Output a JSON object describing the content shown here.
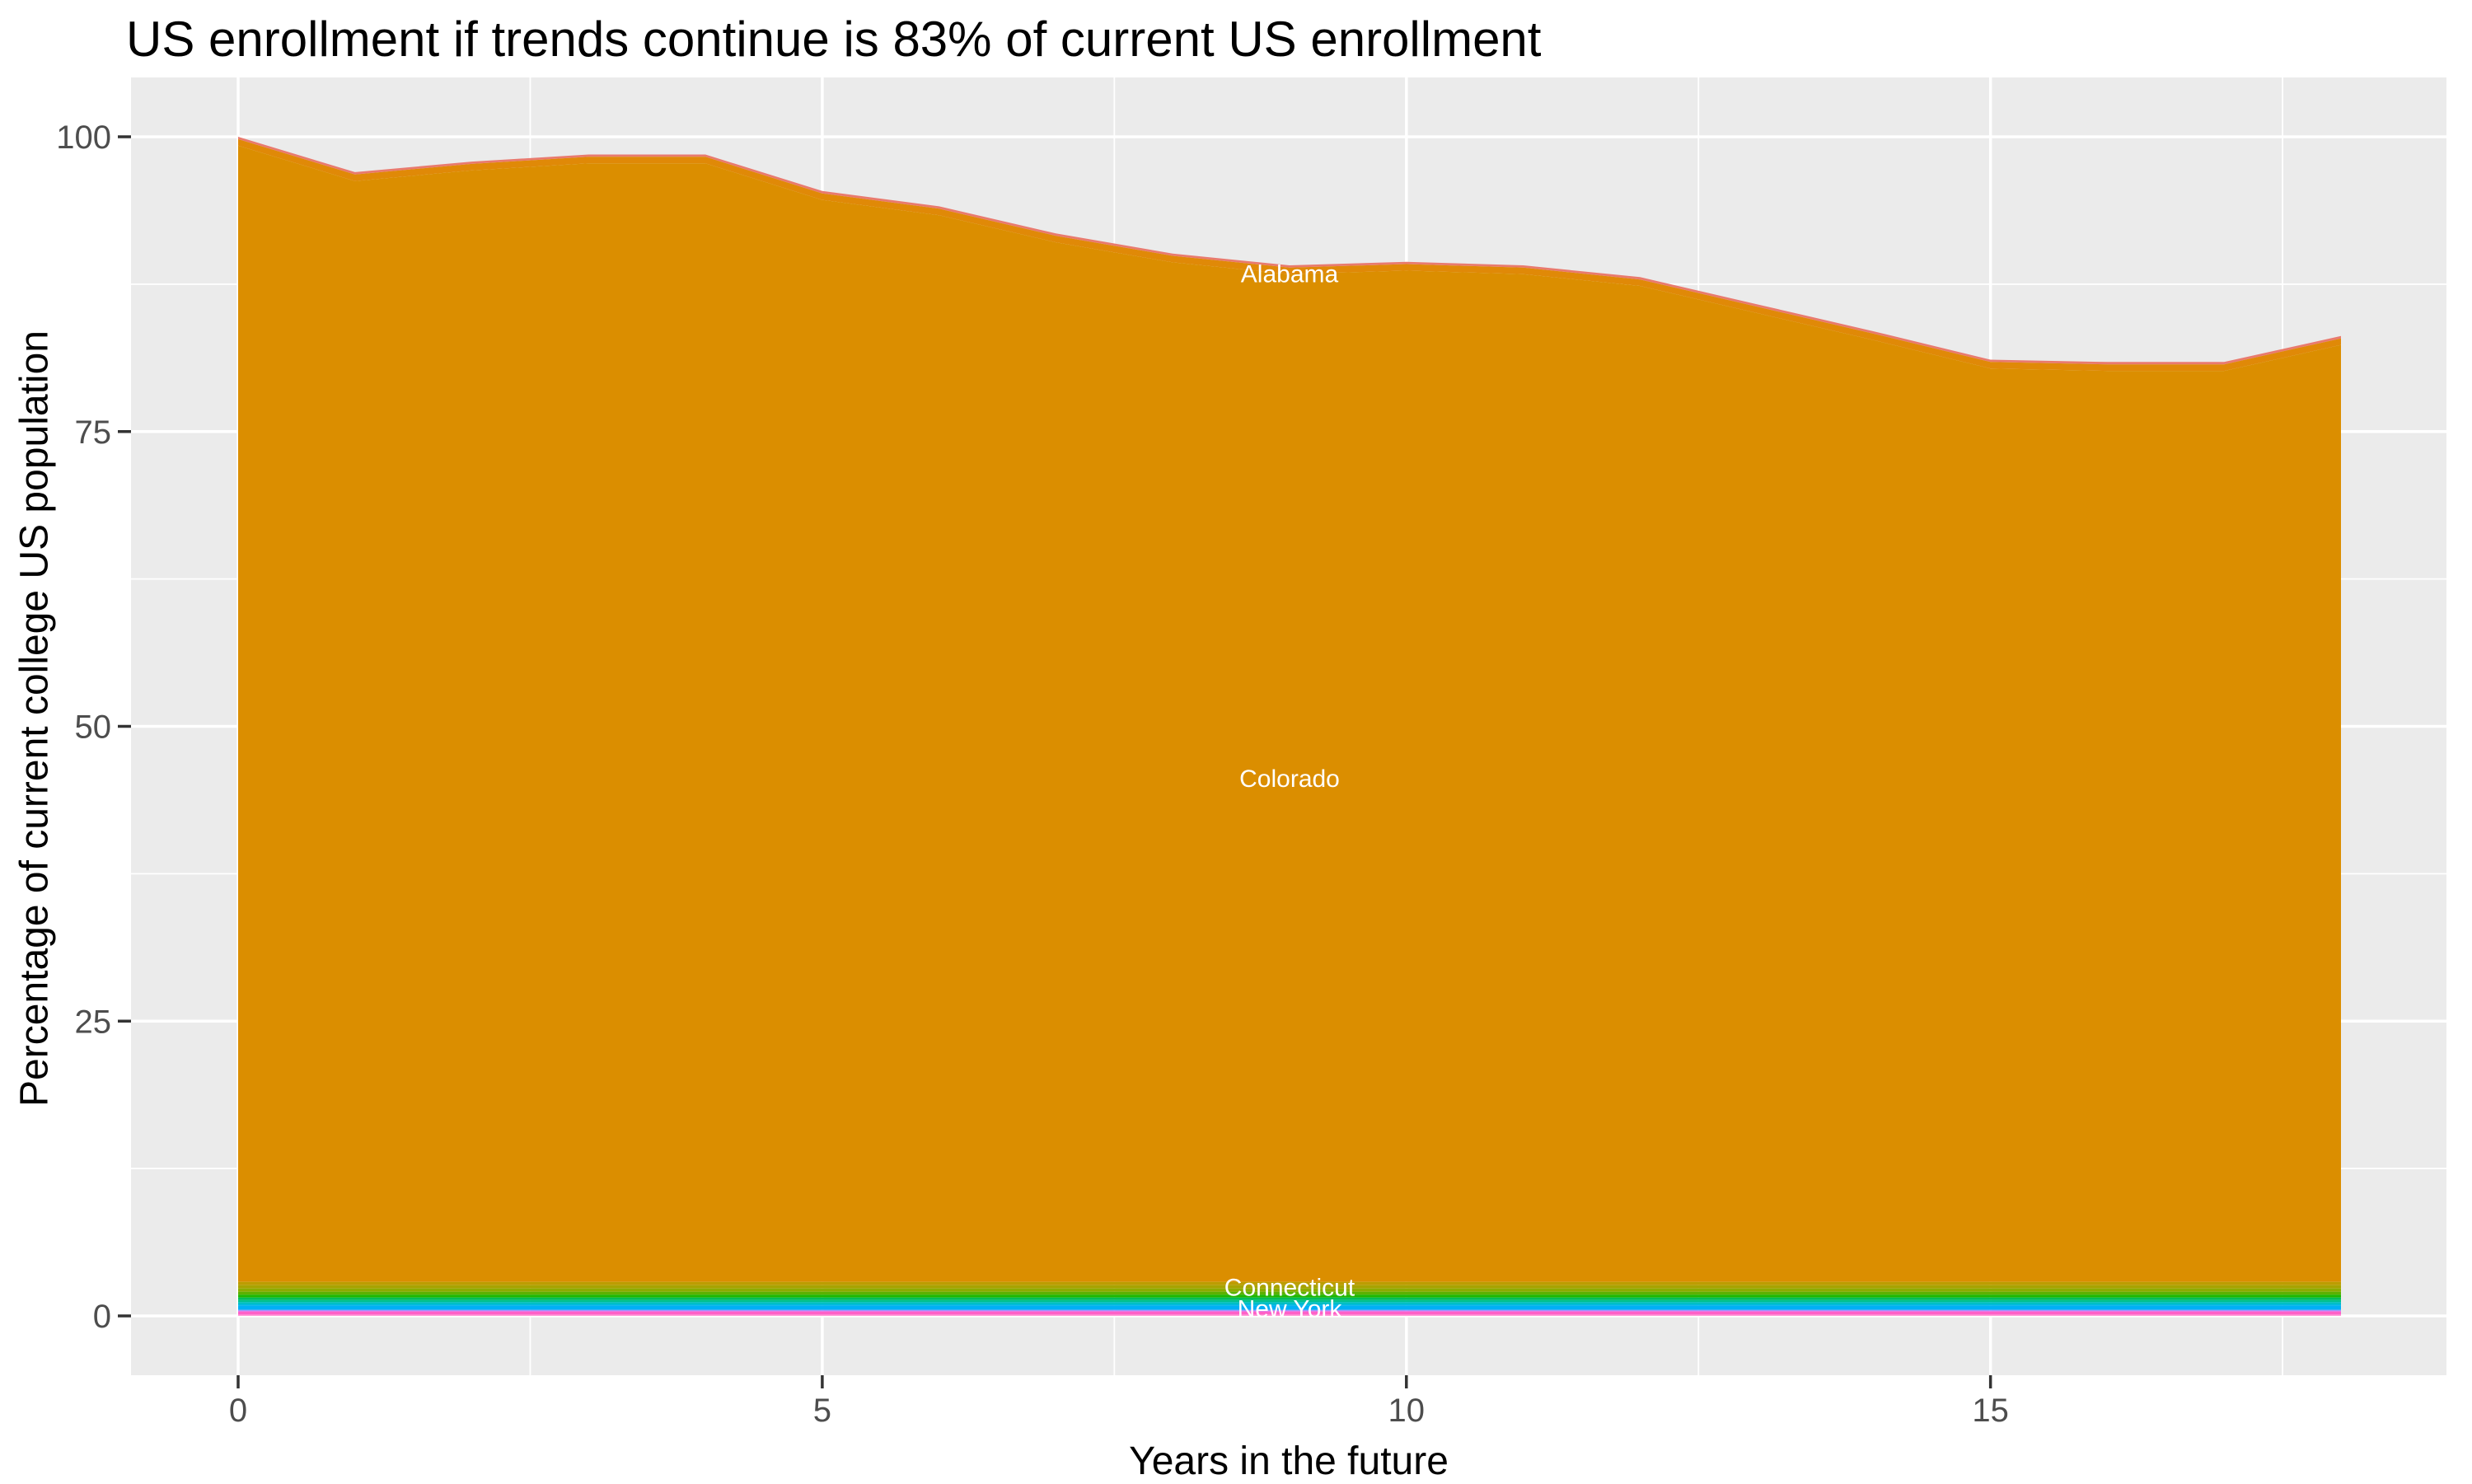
{
  "page": {
    "background": "#FFFFFF"
  },
  "chart_data": {
    "type": "area",
    "stacked": true,
    "title": "US enrollment if trends continue is 83% of current US enrollment",
    "xlabel": "Years in the future",
    "ylabel": "Percentage of current college US population",
    "x": [
      0,
      1,
      2,
      3,
      4,
      5,
      6,
      7,
      8,
      9,
      10,
      11,
      12,
      13,
      14,
      15,
      16,
      17,
      18
    ],
    "xlim": [
      -0.9,
      18.9
    ],
    "ylim": [
      -5,
      105
    ],
    "x_ticks": [
      "0",
      "5",
      "10",
      "15"
    ],
    "x_tick_values": [
      0,
      5,
      10,
      15
    ],
    "y_ticks": [
      "0",
      "25",
      "50",
      "75",
      "100"
    ],
    "y_tick_values": [
      0,
      25,
      50,
      75,
      100
    ],
    "x_minor_tick_values": [
      2.5,
      7.5,
      12.5,
      17.5
    ],
    "y_minor_tick_values": [
      12.5,
      37.5,
      62.5,
      87.5
    ],
    "grid": true,
    "legend": "none",
    "total_top_line": [
      100,
      97.0,
      97.9,
      98.5,
      98.5,
      95.4,
      94.1,
      91.8,
      90.1,
      89.1,
      89.4,
      89.1,
      88.1,
      85.8,
      83.5,
      81.1,
      80.9,
      80.9,
      83.1
    ],
    "series": [
      {
        "name": "Alabama",
        "color": "#E97A6E",
        "value": 0.2
      },
      {
        "name": "",
        "color": "#E08907",
        "value": 0.55
      },
      {
        "name": "Colorado",
        "color": "#DB8E00",
        "remainder": true
      },
      {
        "name": "Connecticut",
        "color": "#BC9D00",
        "value": 0.28
      },
      {
        "name": "",
        "color": "#A7A300",
        "value": 0.28
      },
      {
        "name": "",
        "color": "#8CAB00",
        "value": 0.28
      },
      {
        "name": "",
        "color": "#5BB100",
        "value": 0.24
      },
      {
        "name": "",
        "color": "#1DB800",
        "value": 0.24
      },
      {
        "name": "",
        "color": "#00BC59",
        "value": 0.21
      },
      {
        "name": "",
        "color": "#00C08E",
        "value": 0.17
      },
      {
        "name": "",
        "color": "#00C0BD",
        "value": 0.17
      },
      {
        "name": "",
        "color": "#00B9E2",
        "value": 0.14
      },
      {
        "name": "New York",
        "color": "#00AFF6",
        "value": 0.35
      },
      {
        "name": "",
        "color": "#7E96FF",
        "value": 0.07
      },
      {
        "name": "",
        "color": "#D177FB",
        "value": 0.07
      },
      {
        "name": "",
        "color": "#FF61C7",
        "value": 0.28
      },
      {
        "name": "",
        "color": "#FF9CD6",
        "value": 0.1
      }
    ],
    "in_chart_labels": [
      {
        "text": "Alabama",
        "year": 9,
        "percent": 88.4
      },
      {
        "text": "Colorado",
        "year": 9,
        "percent": 45.6
      },
      {
        "text": "Connecticut",
        "year": 9,
        "percent": 2.45
      },
      {
        "text": "New York",
        "year": 9,
        "percent": 0.63
      }
    ],
    "style": {
      "panel_bg": "#EBEBEB",
      "grid_color": "#FFFFFF",
      "tick_mark_color": "#333333",
      "tick_label_color": "#4D4D4D",
      "title_color": "#000000",
      "axis_title_color": "#000000",
      "area_label_color": "#FFFFFF"
    }
  }
}
